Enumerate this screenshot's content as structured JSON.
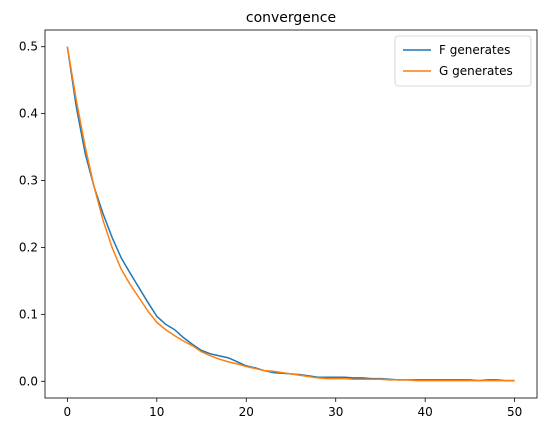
{
  "chart_data": {
    "type": "line",
    "title": "convergence",
    "xlabel": "",
    "ylabel": "",
    "xlim": [
      -2.5,
      52.5
    ],
    "ylim": [
      -0.025,
      0.525
    ],
    "xticks": [
      0,
      10,
      20,
      30,
      40,
      50
    ],
    "xtick_labels": [
      "0",
      "10",
      "20",
      "30",
      "40",
      "50"
    ],
    "yticks": [
      0.0,
      0.1,
      0.2,
      0.3,
      0.4,
      0.5
    ],
    "ytick_labels": [
      "0.0",
      "0.1",
      "0.2",
      "0.3",
      "0.4",
      "0.5"
    ],
    "grid": false,
    "legend_position": "top-right",
    "x": [
      0,
      1,
      2,
      3,
      4,
      5,
      6,
      7,
      8,
      9,
      10,
      11,
      12,
      13,
      14,
      15,
      16,
      17,
      18,
      19,
      20,
      21,
      22,
      23,
      24,
      25,
      26,
      27,
      28,
      29,
      30,
      31,
      32,
      33,
      34,
      35,
      36,
      37,
      38,
      39,
      40,
      41,
      42,
      43,
      44,
      45,
      46,
      47,
      48,
      49,
      50
    ],
    "series": [
      {
        "name": "F generates",
        "color": "#1f77b4",
        "values": [
          0.5,
          0.41,
          0.34,
          0.29,
          0.25,
          0.215,
          0.185,
          0.162,
          0.14,
          0.118,
          0.097,
          0.085,
          0.077,
          0.065,
          0.055,
          0.046,
          0.041,
          0.038,
          0.035,
          0.029,
          0.023,
          0.02,
          0.016,
          0.013,
          0.012,
          0.011,
          0.01,
          0.008,
          0.006,
          0.006,
          0.006,
          0.006,
          0.005,
          0.005,
          0.004,
          0.004,
          0.003,
          0.002,
          0.002,
          0.002,
          0.002,
          0.002,
          0.002,
          0.002,
          0.002,
          0.002,
          0.001,
          0.002,
          0.002,
          0.001,
          0.001
        ]
      },
      {
        "name": "G generates",
        "color": "#ff7f0e",
        "values": [
          0.5,
          0.42,
          0.35,
          0.29,
          0.24,
          0.2,
          0.168,
          0.145,
          0.125,
          0.105,
          0.088,
          0.077,
          0.068,
          0.06,
          0.053,
          0.044,
          0.038,
          0.033,
          0.029,
          0.026,
          0.022,
          0.019,
          0.016,
          0.015,
          0.013,
          0.011,
          0.009,
          0.007,
          0.005,
          0.004,
          0.004,
          0.004,
          0.003,
          0.003,
          0.003,
          0.003,
          0.002,
          0.002,
          0.002,
          0.001,
          0.001,
          0.001,
          0.001,
          0.001,
          0.001,
          0.001,
          0.001,
          0.001,
          0.001,
          0.001,
          0.001
        ]
      }
    ]
  }
}
